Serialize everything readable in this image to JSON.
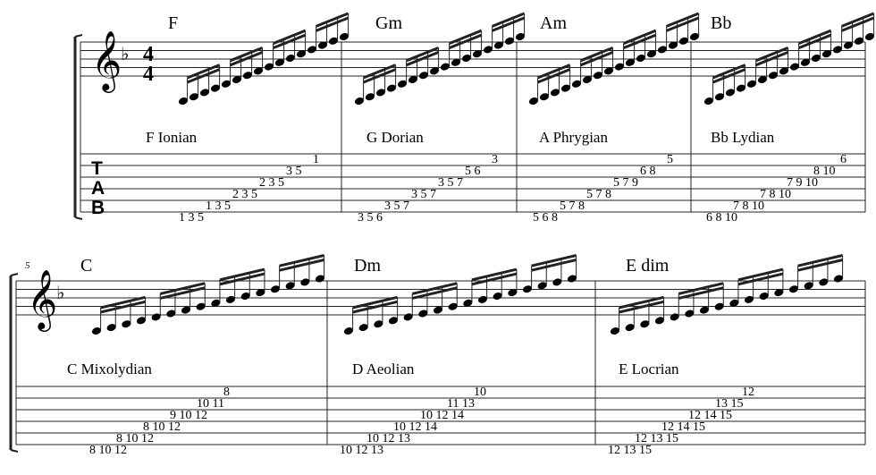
{
  "measure_number_2": "5",
  "tab_letters": [
    "T",
    "A",
    "B"
  ],
  "time_signature": {
    "top": "4",
    "bottom": "4"
  },
  "clef_icon": "treble-clef",
  "key_signature": "flat",
  "measures": [
    {
      "chord": "F",
      "mode": "F Ionian",
      "frets": [
        "1 3 5",
        "1 3 5",
        "2 3 5",
        "2 3 5",
        "3 5",
        "1"
      ]
    },
    {
      "chord": "Gm",
      "mode": "G Dorian",
      "frets": [
        "3 5 6",
        "3 5 7",
        "3 5 7",
        "3 5 7",
        "5 6",
        "3"
      ]
    },
    {
      "chord": "Am",
      "mode": "A Phrygian",
      "frets": [
        "5 6 8",
        "5 7 8",
        "5 7 8",
        "5 7 9",
        "6 8",
        "5"
      ]
    },
    {
      "chord": "Bb",
      "mode": "Bb Lydian",
      "frets": [
        "6 8 10",
        "7 8 10",
        "7 8 10",
        "7 9 10",
        "8 10",
        "6"
      ]
    },
    {
      "chord": "C",
      "mode": "C Mixolydian",
      "frets": [
        "8 10 12",
        "8 10 12",
        "8 10 12",
        "9 10 12",
        "10 11",
        "8"
      ]
    },
    {
      "chord": "Dm",
      "mode": "D Aeolian",
      "frets": [
        "10 12 13",
        "10 12 13",
        "10 12 14",
        "10 12 14",
        "11 13",
        "10"
      ]
    },
    {
      "chord": "E dim",
      "mode": "E Locrian",
      "frets": [
        "12 13 15",
        "12 13 15",
        "12 14 15",
        "12 14 15",
        "13 15",
        "12"
      ]
    }
  ]
}
